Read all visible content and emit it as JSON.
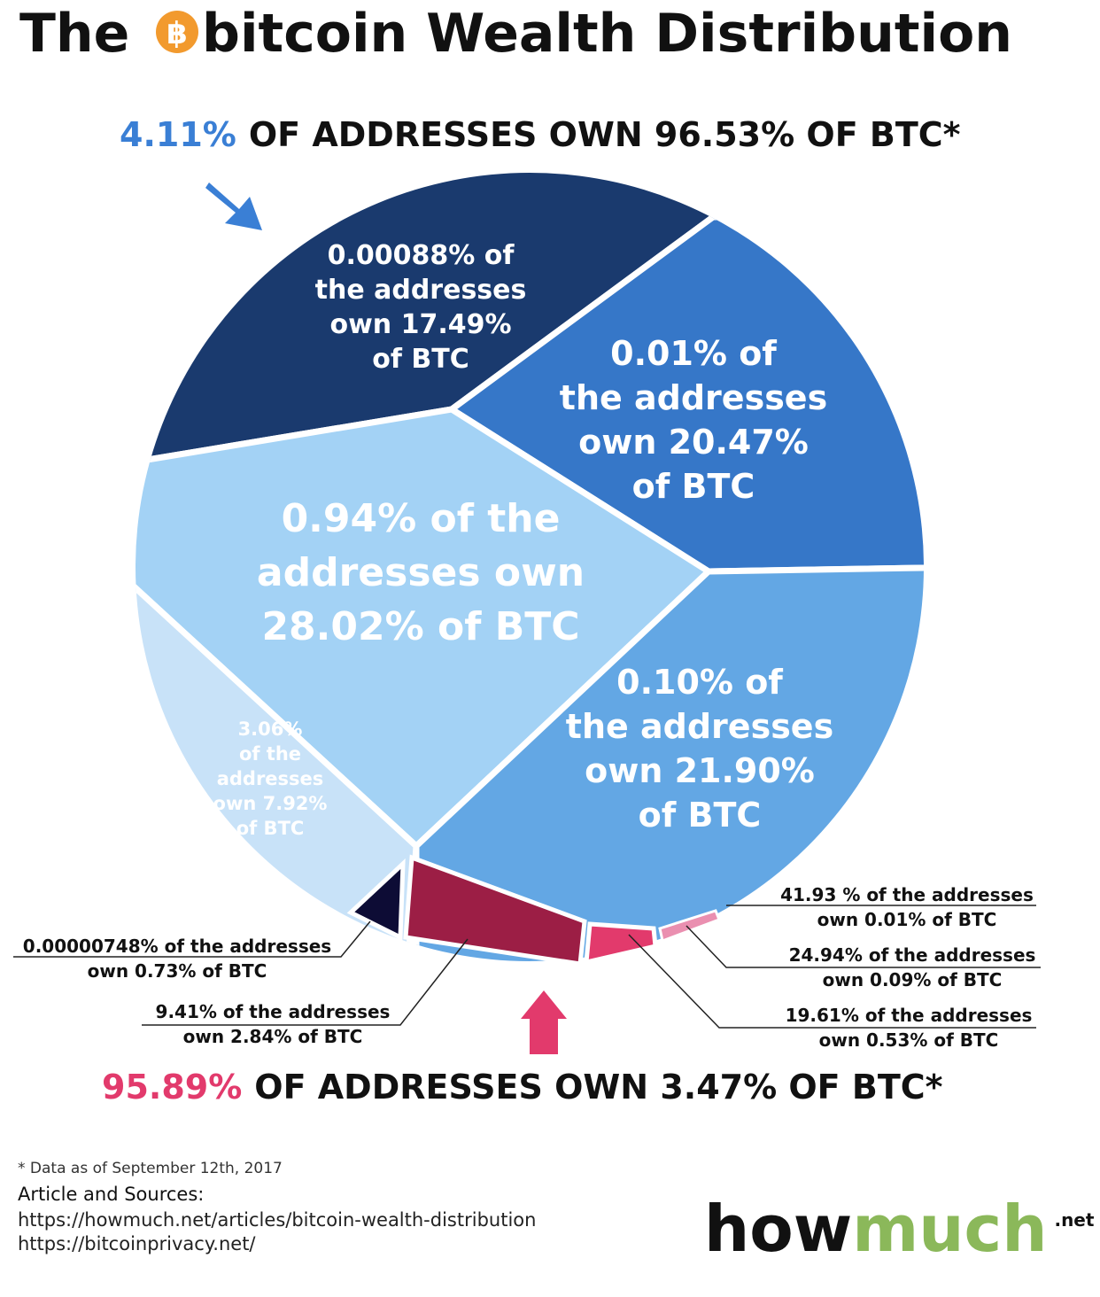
{
  "title": {
    "prefix": "The",
    "rest": "bitcoin Wealth Distribution"
  },
  "headline_top": {
    "highlight": "4.11%",
    "text": "OF ADDRESSES OWN 96.53% OF BTC*"
  },
  "segments": [
    {
      "lines": [
        "0.00088% of",
        "the addresses",
        "own 17.49%",
        "of BTC"
      ]
    },
    {
      "lines": [
        "0.01% of",
        "the addresses",
        "own 20.47%",
        "of BTC"
      ]
    },
    {
      "lines": [
        "0.94% of the",
        "addresses own",
        "28.02% of BTC"
      ]
    },
    {
      "lines": [
        "0.10% of",
        "the addresses",
        "own 21.90%",
        "of BTC"
      ]
    },
    {
      "lines": [
        "3.06%",
        "of the",
        "addresses",
        "own 7.92%",
        "of BTC"
      ]
    }
  ],
  "callouts": [
    {
      "lines": [
        "41.93 % of the addresses",
        "own 0.01% of BTC"
      ]
    },
    {
      "lines": [
        "0.00000748% of the addresses",
        "own 0.73% of BTC"
      ]
    },
    {
      "lines": [
        "24.94% of the addresses",
        "own 0.09% of BTC"
      ]
    },
    {
      "lines": [
        "9.41% of the addresses",
        "own 2.84% of BTC"
      ]
    },
    {
      "lines": [
        "19.61% of the addresses",
        "own 0.53% of BTC"
      ]
    }
  ],
  "headline_bottom": {
    "highlight": "95.89%",
    "text": "OF ADDRESSES OWN 3.47% OF BTC*"
  },
  "footnote": "* Data as of September 12th, 2017",
  "sources": {
    "heading": "Article and Sources:",
    "links": [
      "https://howmuch.net/articles/bitcoin-wealth-distribution",
      "https://bitcoinprivacy.net/"
    ]
  },
  "logo": {
    "main": "how",
    "accent": "much",
    "suffix": ".net"
  }
}
